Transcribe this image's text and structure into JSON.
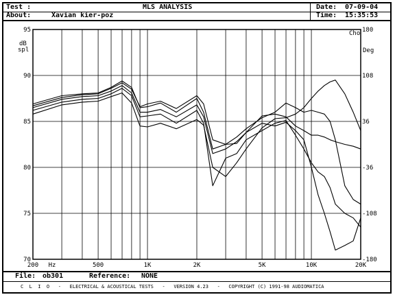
{
  "header": {
    "test_label": "Test :",
    "title": "MLS ANALYSIS",
    "date_label": "Date:",
    "date_value": "07-09-04",
    "about_label": "About:",
    "about_value": "Xavian kier-poz",
    "time_label": "Time:",
    "time_value": "15:35:53"
  },
  "footer": {
    "file_label": "File:",
    "file_value": "ob301",
    "reference_label": "Reference:",
    "reference_value": "NONE",
    "banner": "C  L  I  O   -   ELECTRICAL & ACOUSTICAL TESTS   -   VERSION 4.23   -   COPYRIGHT (C) 1991-98 AUDIOMATICA"
  },
  "chart_data": {
    "type": "line",
    "x_scale": "log",
    "xlim": [
      200,
      20000
    ],
    "ylim": [
      70,
      95
    ],
    "y2lim": [
      -180,
      180
    ],
    "x_tick_labels": [
      "200",
      "Hz",
      "500",
      "1K",
      "2K",
      "5K",
      "10K",
      "20K"
    ],
    "y_tick_labels": [
      "95",
      "90",
      "85",
      "80",
      "75",
      "70"
    ],
    "y2_tick_labels": [
      "180",
      "108",
      "36",
      "-36",
      "-108",
      "-180"
    ],
    "ylabel_line1": "dB",
    "ylabel_line2": "spl",
    "y2label_line1": "Cho",
    "y2label_line2": "Deg",
    "grid": true,
    "series": [
      {
        "values": [
          [
            200,
            86.7
          ],
          [
            300,
            87.6
          ],
          [
            400,
            87.9
          ],
          [
            500,
            88.0
          ],
          [
            600,
            88.6
          ],
          [
            700,
            89.2
          ],
          [
            800,
            88.5
          ],
          [
            900,
            86.6
          ],
          [
            1000,
            86.9
          ],
          [
            1200,
            87.2
          ],
          [
            1500,
            86.4
          ],
          [
            2000,
            87.8
          ],
          [
            2200,
            86.9
          ],
          [
            2500,
            83.0
          ],
          [
            3000,
            82.5
          ],
          [
            3500,
            82.6
          ],
          [
            4000,
            83.8
          ],
          [
            5000,
            84.8
          ],
          [
            6000,
            84.5
          ],
          [
            7000,
            84.9
          ],
          [
            8000,
            84.0
          ],
          [
            9000,
            83.0
          ],
          [
            10000,
            80.0
          ],
          [
            11000,
            77.0
          ],
          [
            12000,
            75.0
          ],
          [
            13000,
            73.0
          ],
          [
            14000,
            71.0
          ],
          [
            16000,
            71.5
          ],
          [
            18000,
            72.0
          ],
          [
            20000,
            74.5
          ]
        ]
      },
      {
        "values": [
          [
            200,
            86.2
          ],
          [
            300,
            87.1
          ],
          [
            400,
            87.4
          ],
          [
            500,
            87.5
          ],
          [
            600,
            88.0
          ],
          [
            700,
            88.6
          ],
          [
            800,
            87.8
          ],
          [
            900,
            85.5
          ],
          [
            1000,
            85.6
          ],
          [
            1200,
            85.8
          ],
          [
            1500,
            84.8
          ],
          [
            2000,
            86.2
          ],
          [
            2200,
            84.8
          ],
          [
            2500,
            78.0
          ],
          [
            3000,
            81.0
          ],
          [
            3500,
            81.5
          ],
          [
            4000,
            83.0
          ],
          [
            5000,
            84.0
          ],
          [
            6000,
            84.8
          ],
          [
            7000,
            85.1
          ],
          [
            8000,
            83.5
          ],
          [
            9000,
            82.0
          ],
          [
            10000,
            80.5
          ],
          [
            11000,
            79.5
          ],
          [
            12000,
            79.0
          ],
          [
            13000,
            77.8
          ],
          [
            14000,
            76.0
          ],
          [
            16000,
            75.0
          ],
          [
            18000,
            74.5
          ],
          [
            20000,
            73.5
          ]
        ]
      },
      {
        "values": [
          [
            200,
            86.9
          ],
          [
            300,
            87.8
          ],
          [
            400,
            88.0
          ],
          [
            500,
            88.1
          ],
          [
            600,
            88.7
          ],
          [
            700,
            89.4
          ],
          [
            800,
            88.7
          ],
          [
            900,
            86.5
          ],
          [
            1000,
            86.6
          ],
          [
            1200,
            87.0
          ],
          [
            1500,
            86.0
          ],
          [
            2000,
            87.5
          ],
          [
            2200,
            86.0
          ],
          [
            2500,
            82.0
          ],
          [
            3000,
            82.5
          ],
          [
            3500,
            83.3
          ],
          [
            4000,
            84.2
          ],
          [
            5000,
            85.4
          ],
          [
            6000,
            86.0
          ],
          [
            7000,
            87.0
          ],
          [
            8000,
            86.5
          ],
          [
            9000,
            86.0
          ],
          [
            10000,
            86.2
          ],
          [
            11000,
            86.0
          ],
          [
            12000,
            85.8
          ],
          [
            13000,
            85.0
          ],
          [
            14000,
            83.0
          ],
          [
            16000,
            78.0
          ],
          [
            18000,
            76.5
          ],
          [
            20000,
            76.0
          ]
        ]
      },
      {
        "values": [
          [
            200,
            85.8
          ],
          [
            300,
            86.8
          ],
          [
            400,
            87.1
          ],
          [
            500,
            87.2
          ],
          [
            600,
            87.7
          ],
          [
            700,
            88.1
          ],
          [
            800,
            87.0
          ],
          [
            900,
            84.5
          ],
          [
            1000,
            84.4
          ],
          [
            1200,
            84.8
          ],
          [
            1500,
            84.2
          ],
          [
            2000,
            85.2
          ],
          [
            2200,
            84.6
          ],
          [
            2500,
            80.0
          ],
          [
            3000,
            79.0
          ],
          [
            3500,
            80.5
          ],
          [
            4000,
            82.0
          ],
          [
            5000,
            84.3
          ],
          [
            6000,
            85.3
          ],
          [
            7000,
            85.4
          ],
          [
            8000,
            85.8
          ],
          [
            9000,
            86.5
          ],
          [
            10000,
            87.5
          ],
          [
            11000,
            88.3
          ],
          [
            12000,
            88.9
          ],
          [
            13000,
            89.3
          ],
          [
            14000,
            89.5
          ],
          [
            16000,
            88.0
          ],
          [
            18000,
            86.0
          ],
          [
            20000,
            84.0
          ]
        ]
      },
      {
        "values": [
          [
            200,
            86.5
          ],
          [
            300,
            87.4
          ],
          [
            400,
            87.7
          ],
          [
            500,
            87.8
          ],
          [
            600,
            88.3
          ],
          [
            700,
            88.9
          ],
          [
            800,
            88.1
          ],
          [
            900,
            86.0
          ],
          [
            1000,
            86.0
          ],
          [
            1200,
            86.3
          ],
          [
            1500,
            85.5
          ],
          [
            2000,
            86.8
          ],
          [
            2200,
            85.5
          ],
          [
            2500,
            81.5
          ],
          [
            3000,
            82.0
          ],
          [
            3500,
            82.8
          ],
          [
            4000,
            83.8
          ],
          [
            5000,
            85.6
          ],
          [
            6000,
            85.8
          ],
          [
            7000,
            85.5
          ],
          [
            8000,
            84.5
          ],
          [
            9000,
            84.0
          ],
          [
            10000,
            83.5
          ],
          [
            11000,
            83.5
          ],
          [
            12000,
            83.3
          ],
          [
            13000,
            83.0
          ],
          [
            14000,
            82.8
          ],
          [
            16000,
            82.5
          ],
          [
            18000,
            82.3
          ],
          [
            20000,
            82.0
          ]
        ]
      }
    ]
  }
}
